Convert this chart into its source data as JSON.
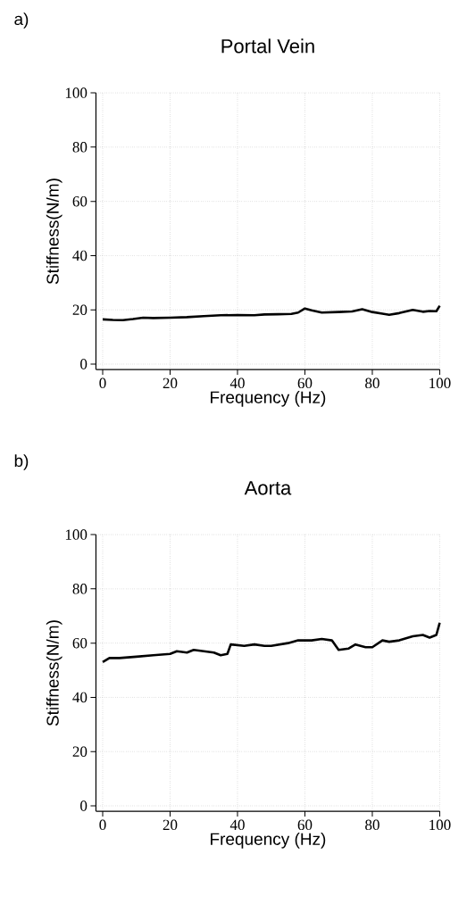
{
  "chart_data": [
    {
      "type": "line",
      "title": "Portal Vein",
      "xlabel": "Frequency (Hz)",
      "ylabel": "Stiffness(N/m)",
      "annotations": [
        "a)"
      ],
      "xlim": [
        -2,
        100
      ],
      "ylim": [
        -2,
        100
      ],
      "xticks": [
        0,
        20,
        40,
        60,
        80,
        100
      ],
      "yticks": [
        0,
        20,
        40,
        60,
        80,
        100
      ],
      "grid": true,
      "marker": "none",
      "line_style": "solid",
      "series": [
        {
          "color": "#000000",
          "x": [
            0,
            3,
            6,
            9,
            12,
            15,
            20,
            25,
            30,
            35,
            40,
            45,
            48,
            52,
            56,
            58,
            60,
            62,
            65,
            70,
            74,
            77,
            80,
            83,
            85,
            88,
            92,
            95,
            97,
            99,
            100
          ],
          "values": [
            16.5,
            16.3,
            16.2,
            16.6,
            17.1,
            17.0,
            17.1,
            17.3,
            17.7,
            18.0,
            18.1,
            18.0,
            18.3,
            18.4,
            18.5,
            19.0,
            20.5,
            19.8,
            19.0,
            19.2,
            19.4,
            20.2,
            19.2,
            18.6,
            18.2,
            18.8,
            20.0,
            19.3,
            19.6,
            19.5,
            21.5
          ]
        }
      ]
    },
    {
      "type": "line",
      "title": "Aorta",
      "xlabel": "Frequency (Hz)",
      "ylabel": "Stiffness(N/m)",
      "annotations": [
        "b)"
      ],
      "xlim": [
        -2,
        100
      ],
      "ylim": [
        -2,
        100
      ],
      "xticks": [
        0,
        20,
        40,
        60,
        80,
        100
      ],
      "yticks": [
        0,
        20,
        40,
        60,
        80,
        100
      ],
      "grid": true,
      "marker": "none",
      "line_style": "solid",
      "series": [
        {
          "color": "#000000",
          "x": [
            0,
            2,
            5,
            10,
            15,
            20,
            22,
            25,
            27,
            30,
            33,
            35,
            37,
            38,
            42,
            45,
            48,
            50,
            55,
            58,
            62,
            65,
            68,
            70,
            73,
            75,
            78,
            80,
            83,
            85,
            88,
            92,
            95,
            97,
            99,
            100
          ],
          "values": [
            53.0,
            54.5,
            54.5,
            55.0,
            55.5,
            56.0,
            57.0,
            56.5,
            57.5,
            57.0,
            56.5,
            55.5,
            56.0,
            59.5,
            59.0,
            59.5,
            59.0,
            59.0,
            60.0,
            61.0,
            61.0,
            61.5,
            61.0,
            57.5,
            58.0,
            59.5,
            58.5,
            58.5,
            61.0,
            60.5,
            61.0,
            62.5,
            63.0,
            62.0,
            63.0,
            67.5
          ]
        }
      ]
    }
  ]
}
